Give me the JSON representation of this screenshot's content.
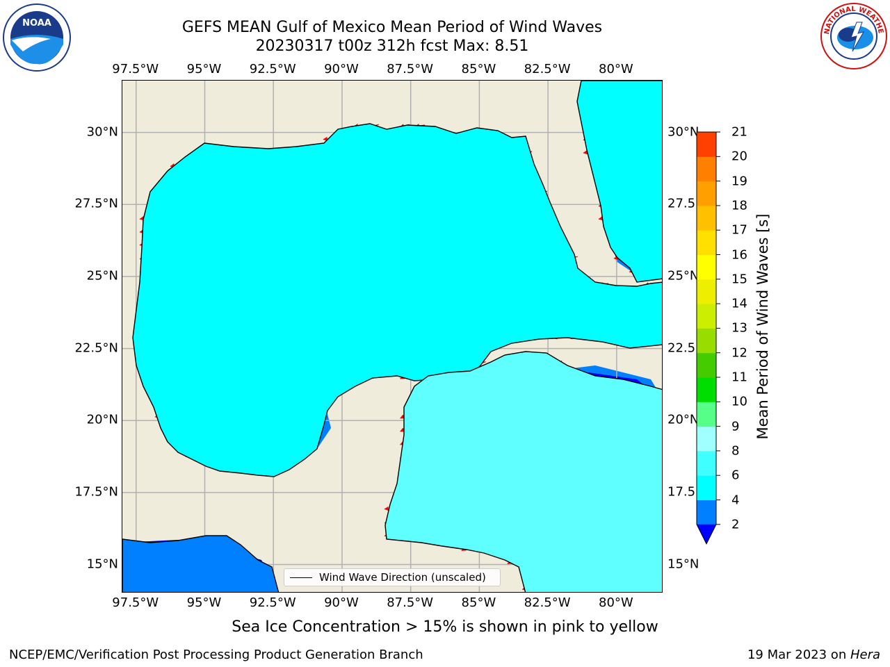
{
  "header": {
    "title_line1": "GEFS MEAN Gulf of Mexico Mean Period of Wind Waves",
    "title_line2": "20230317 t00z 312h fcst   Max: 8.51"
  },
  "logos": {
    "left": {
      "name": "noaa-logo",
      "text": "NOAA"
    },
    "right": {
      "name": "nws-logo",
      "text": "NATIONAL WEATHER SERVICE"
    }
  },
  "axes": {
    "lon_ticks": [
      "97.5°W",
      "95°W",
      "92.5°W",
      "90°W",
      "87.5°W",
      "85°W",
      "82.5°W",
      "80°W"
    ],
    "lon_values": [
      -97.5,
      -95,
      -92.5,
      -90,
      -87.5,
      -85,
      -82.5,
      -80
    ],
    "lat_ticks_left": [
      "30°N",
      "27.5°N",
      "25°N",
      "22.5°N",
      "20°N",
      "17.5°N",
      "15°N"
    ],
    "lat_ticks_right": [
      "30°N",
      "27.5",
      "25°N",
      "22.5",
      "20°N",
      "17.5",
      "15°N"
    ],
    "lat_values": [
      30,
      27.5,
      25,
      22.5,
      20,
      17.5,
      15
    ],
    "lon_range": [
      -98,
      -78.3
    ],
    "lat_range": [
      14,
      31.8
    ]
  },
  "legend": {
    "label": "Wind Wave Direction (unscaled)"
  },
  "colorbar": {
    "label": "Mean Period of Wind Waves [s]",
    "tick_labels": [
      "2",
      "4",
      "6",
      "8",
      "9",
      "10",
      "11",
      "12",
      "13",
      "14",
      "15",
      "16",
      "17",
      "18",
      "19",
      "20",
      "21"
    ],
    "levels": [
      2,
      4,
      6,
      8,
      9,
      10,
      11,
      12,
      13,
      14,
      15,
      16,
      17,
      18,
      19,
      20,
      21
    ],
    "colors": [
      "#0080ff",
      "#00ffff",
      "#40ffff",
      "#a0ffff",
      "#55ff88",
      "#00dd00",
      "#44cc00",
      "#99dd00",
      "#ccee00",
      "#eeee00",
      "#ffff00",
      "#ffe000",
      "#ffc000",
      "#ffa000",
      "#ff8000",
      "#ff4000",
      "#ff0000"
    ],
    "under_color": "#0000ff"
  },
  "colors": {
    "land": "#efecdb",
    "ocean_low": "#0080ff",
    "ocean_mid": "#00ffff",
    "ocean_light": "#60ffff",
    "ocean_deep": "#0000ff",
    "arrow": "#ff0000",
    "grid": "#b0b0b0"
  },
  "note": "Sea Ice Concentration > 15% is shown in pink to yellow",
  "footer": {
    "left": "NCEP/EMC/Verification Post Processing Product Generation Branch",
    "right_prefix": "19 Mar 2023 on ",
    "right_host": "Hera"
  }
}
